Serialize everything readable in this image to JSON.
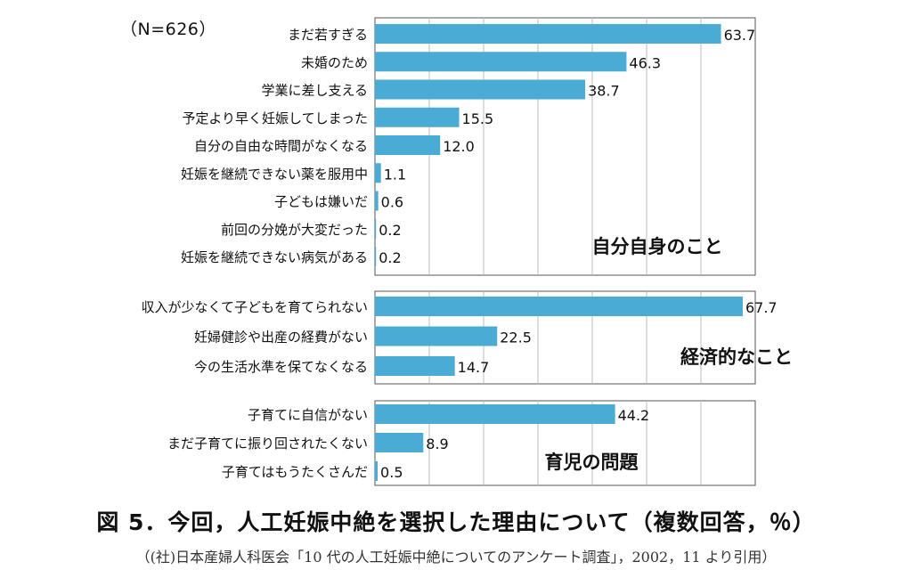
{
  "sample_size": "（N=626）",
  "caption": "図 5．今回，人工妊娠中絶を選択した理由について（複数回答，％）",
  "source": "（(社)日本産婦人科医会「10 代の人工妊娠中絶についてのアンケート調査」，2002，11 より引用）",
  "bar_color": "#4aacd4",
  "chart_data": [
    {
      "type": "bar",
      "orientation": "horizontal",
      "group_label": "自分自身のこと",
      "categories": [
        "まだ若すぎる",
        "未婚のため",
        "学業に差し支える",
        "予定より早く妊娠してしまった",
        "自分の自由な時間がなくなる",
        "妊娠を継続できない薬を服用中",
        "子どもは嫌いだ",
        "前回の分娩が大変だった",
        "妊娠を継続できない病気がある"
      ],
      "values": [
        63.7,
        46.3,
        38.7,
        15.5,
        12.0,
        1.1,
        0.6,
        0.2,
        0.2
      ],
      "value_labels": [
        "63.7",
        "46.3",
        "38.7",
        "15.5",
        "12.0",
        "1.1",
        "0.6",
        "0.2",
        "0.2"
      ],
      "xlim": [
        0,
        70
      ],
      "grid": true
    },
    {
      "type": "bar",
      "orientation": "horizontal",
      "group_label": "経済的なこと",
      "categories": [
        "収入が少なくて子どもを育てられない",
        "妊婦健診や出産の経費がない",
        "今の生活水準を保てなくなる"
      ],
      "values": [
        67.7,
        22.5,
        14.7
      ],
      "value_labels": [
        "67.7",
        "22.5",
        "14.7"
      ],
      "xlim": [
        0,
        70
      ],
      "grid": true
    },
    {
      "type": "bar",
      "orientation": "horizontal",
      "group_label": "育児の問題",
      "categories": [
        "子育てに自信がない",
        "まだ子育てに振り回されたくない",
        "子育てはもうたくさんだ"
      ],
      "values": [
        44.2,
        8.9,
        0.5
      ],
      "value_labels": [
        "44.2",
        "8.9",
        "0.5"
      ],
      "xlim": [
        0,
        70
      ],
      "grid": true
    }
  ]
}
